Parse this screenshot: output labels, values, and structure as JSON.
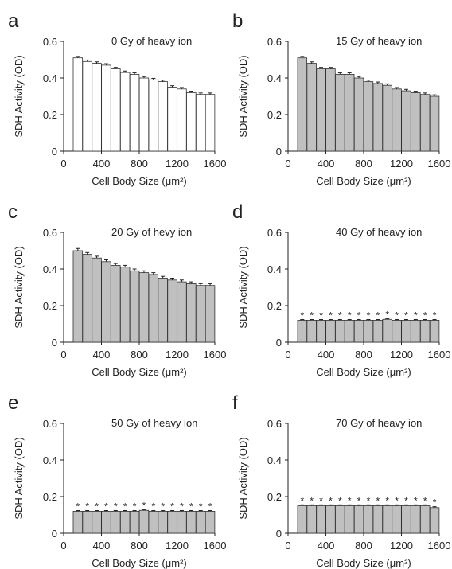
{
  "chart_data": [
    {
      "type": "bar",
      "panel_letter": "a",
      "title": "0 Gy of heavy ion",
      "xlabel": "Cell Body Size (μm²)",
      "ylabel": "SDH Activity (OD)",
      "ylim": [
        0,
        0.6
      ],
      "yticks": [
        "0",
        "0.2",
        "0.4",
        "0.6"
      ],
      "xlim": [
        0,
        1600
      ],
      "xticks": [
        "0",
        "400",
        "800",
        "1200",
        "1600"
      ],
      "bar_color": "#ffffff",
      "x": [
        150,
        250,
        350,
        450,
        550,
        650,
        750,
        850,
        950,
        1050,
        1150,
        1250,
        1350,
        1450,
        1550
      ],
      "values": [
        0.51,
        0.49,
        0.48,
        0.47,
        0.45,
        0.43,
        0.42,
        0.4,
        0.39,
        0.38,
        0.35,
        0.34,
        0.32,
        0.31,
        0.31
      ],
      "errors": [
        0.008,
        0.008,
        0.008,
        0.008,
        0.008,
        0.008,
        0.008,
        0.008,
        0.008,
        0.008,
        0.008,
        0.008,
        0.008,
        0.008,
        0.008
      ],
      "significance": []
    },
    {
      "type": "bar",
      "panel_letter": "b",
      "title": "15 Gy of heavy ion",
      "xlabel": "Cell Body Size (μm²)",
      "ylabel": "SDH Activity (OD)",
      "ylim": [
        0,
        0.6
      ],
      "yticks": [
        "0",
        "0.2",
        "0.4",
        "0.6"
      ],
      "xlim": [
        0,
        1600
      ],
      "xticks": [
        "0",
        "400",
        "800",
        "1200",
        "1600"
      ],
      "bar_color": "#c0c0c0",
      "x": [
        150,
        250,
        350,
        450,
        550,
        650,
        750,
        850,
        950,
        1050,
        1150,
        1250,
        1350,
        1450,
        1550
      ],
      "values": [
        0.51,
        0.48,
        0.45,
        0.45,
        0.42,
        0.42,
        0.4,
        0.38,
        0.37,
        0.36,
        0.34,
        0.33,
        0.32,
        0.31,
        0.3
      ],
      "errors": [
        0.008,
        0.008,
        0.008,
        0.008,
        0.008,
        0.008,
        0.008,
        0.008,
        0.008,
        0.008,
        0.008,
        0.008,
        0.008,
        0.008,
        0.008
      ],
      "significance": []
    },
    {
      "type": "bar",
      "panel_letter": "c",
      "title": "20 Gy of hevy ion",
      "xlabel": "Cell Body Size (μm²)",
      "ylabel": "SDH Activity (OD)",
      "ylim": [
        0,
        0.6
      ],
      "yticks": [
        "0",
        "0.2",
        "0.4",
        "0.6"
      ],
      "xlim": [
        0,
        1600
      ],
      "xticks": [
        "0",
        "400",
        "800",
        "1200",
        "1600"
      ],
      "bar_color": "#c0c0c0",
      "x": [
        150,
        250,
        350,
        450,
        550,
        650,
        750,
        850,
        950,
        1050,
        1150,
        1250,
        1350,
        1450,
        1550
      ],
      "values": [
        0.5,
        0.48,
        0.46,
        0.44,
        0.42,
        0.41,
        0.39,
        0.38,
        0.37,
        0.35,
        0.34,
        0.33,
        0.32,
        0.31,
        0.31
      ],
      "errors": [
        0.012,
        0.01,
        0.01,
        0.01,
        0.01,
        0.01,
        0.01,
        0.01,
        0.01,
        0.01,
        0.01,
        0.01,
        0.01,
        0.01,
        0.01
      ],
      "significance": []
    },
    {
      "type": "bar",
      "panel_letter": "d",
      "title": "40 Gy of heavy ion",
      "xlabel": "Cell Body Size (μm²)",
      "ylabel": "SDH Activity (OD)",
      "ylim": [
        0,
        0.6
      ],
      "yticks": [
        "0",
        "0.2",
        "0.4",
        "0.6"
      ],
      "xlim": [
        0,
        1600
      ],
      "xticks": [
        "0",
        "400",
        "800",
        "1200",
        "1600"
      ],
      "bar_color": "#c0c0c0",
      "x": [
        150,
        250,
        350,
        450,
        550,
        650,
        750,
        850,
        950,
        1050,
        1150,
        1250,
        1350,
        1450,
        1550
      ],
      "values": [
        0.12,
        0.12,
        0.12,
        0.12,
        0.12,
        0.12,
        0.12,
        0.12,
        0.12,
        0.125,
        0.12,
        0.12,
        0.12,
        0.12,
        0.12
      ],
      "errors": [
        0.004,
        0.004,
        0.004,
        0.004,
        0.004,
        0.004,
        0.004,
        0.004,
        0.004,
        0.004,
        0.004,
        0.004,
        0.004,
        0.004,
        0.004
      ],
      "significance": [
        "*",
        "*",
        "*",
        "*",
        "*",
        "*",
        "*",
        "*",
        "*",
        "*",
        "*",
        "*",
        "*",
        "*",
        "*"
      ]
    },
    {
      "type": "bar",
      "panel_letter": "e",
      "title": "50 Gy of heavy ion",
      "xlabel": "Cell Body Size (μm²)",
      "ylabel": "SDH Activity (OD)",
      "ylim": [
        0,
        0.6
      ],
      "yticks": [
        "0",
        "0.2",
        "0.4",
        "0.6"
      ],
      "xlim": [
        0,
        1600
      ],
      "xticks": [
        "0",
        "400",
        "800",
        "1200",
        "1600"
      ],
      "bar_color": "#c0c0c0",
      "x": [
        150,
        250,
        350,
        450,
        550,
        650,
        750,
        850,
        950,
        1050,
        1150,
        1250,
        1350,
        1450,
        1550
      ],
      "values": [
        0.12,
        0.12,
        0.12,
        0.12,
        0.12,
        0.12,
        0.12,
        0.125,
        0.12,
        0.12,
        0.12,
        0.12,
        0.12,
        0.12,
        0.12
      ],
      "errors": [
        0.004,
        0.004,
        0.004,
        0.004,
        0.004,
        0.004,
        0.004,
        0.004,
        0.004,
        0.004,
        0.004,
        0.004,
        0.004,
        0.004,
        0.004
      ],
      "significance": [
        "*",
        "*",
        "*",
        "*",
        "*",
        "*",
        "*",
        "*",
        "*",
        "*",
        "*",
        "*",
        "*",
        "*",
        "*"
      ]
    },
    {
      "type": "bar",
      "panel_letter": "f",
      "title": "70 Gy of heavy ion",
      "xlabel": "Cell Body Size (μm²)",
      "ylabel": "SDH Activity (OD)",
      "ylim": [
        0,
        0.6
      ],
      "yticks": [
        "0",
        "0.2",
        "0.4",
        "0.6"
      ],
      "xlim": [
        0,
        1600
      ],
      "xticks": [
        "0",
        "400",
        "800",
        "1200",
        "1600"
      ],
      "bar_color": "#c0c0c0",
      "x": [
        150,
        250,
        350,
        450,
        550,
        650,
        750,
        850,
        950,
        1050,
        1150,
        1250,
        1350,
        1450,
        1550
      ],
      "values": [
        0.15,
        0.15,
        0.15,
        0.15,
        0.15,
        0.15,
        0.15,
        0.15,
        0.15,
        0.15,
        0.15,
        0.15,
        0.15,
        0.15,
        0.14
      ],
      "errors": [
        0.005,
        0.005,
        0.005,
        0.005,
        0.005,
        0.005,
        0.005,
        0.005,
        0.005,
        0.005,
        0.005,
        0.005,
        0.005,
        0.005,
        0.005
      ],
      "significance": [
        "*",
        "*",
        "*",
        "*",
        "*",
        "*",
        "*",
        "*",
        "*",
        "*",
        "*",
        "*",
        "*",
        "*",
        "*"
      ]
    }
  ]
}
